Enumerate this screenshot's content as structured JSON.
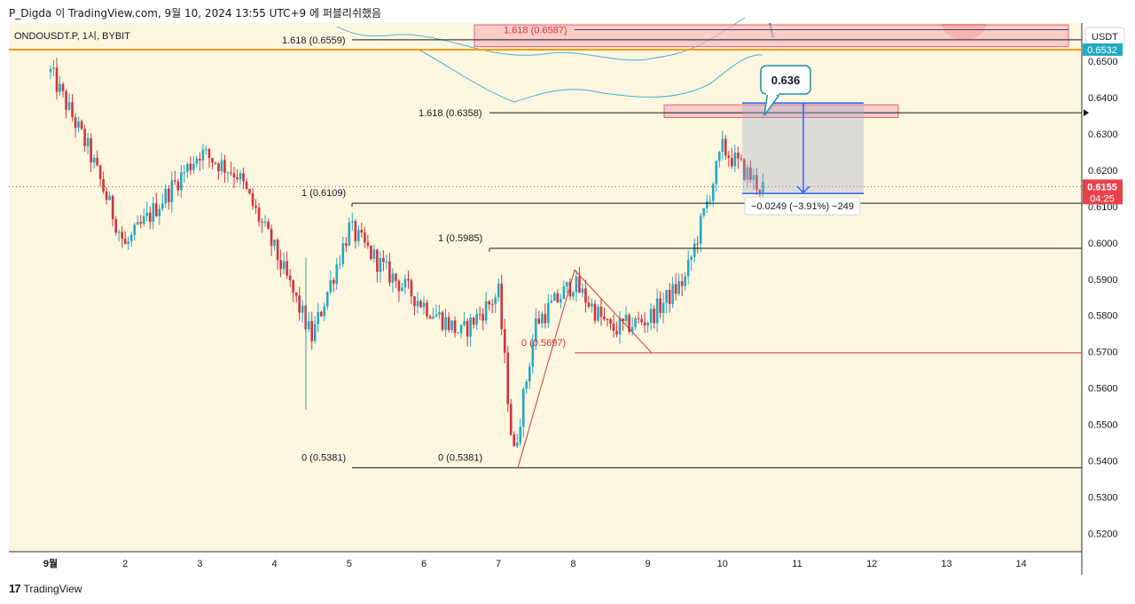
{
  "header_text": "P_Digda 이 TradingView.com, 9월 10, 2024 13:55 UTC+9 에 퍼블리쉬했음",
  "symbol_legend": "ONDOUSDT.P, 1시, BYBIT",
  "currency_button": "USDT",
  "footer_brand": "TradingView",
  "colors": {
    "background": "#fdf7df",
    "up": "#26a7c4",
    "down": "#d2323e",
    "zone_fill": "#f6b9bf",
    "zone_stroke": "#e06470",
    "measure_blue": "#2962ff",
    "current_price_bg": "#e8434c",
    "teal_tag": "#20a9c4",
    "orange_line": "#ff9800",
    "envelope": "#43b3d6"
  },
  "chart_data": {
    "type": "candlestick",
    "ylim": [
      0.515,
      0.6605
    ],
    "y_ticks": [
      "0.6500",
      "0.6400",
      "0.6300",
      "0.6200",
      "0.6100",
      "0.6000",
      "0.5900",
      "0.5800",
      "0.5700",
      "0.5600",
      "0.5500",
      "0.5400",
      "0.5300",
      "0.5200"
    ],
    "x_ticks": [
      "9월",
      "2",
      "3",
      "4",
      "5",
      "6",
      "7",
      "8",
      "9",
      "10",
      "11",
      "12",
      "13",
      "14"
    ],
    "current_price": {
      "value": "0.6155",
      "countdown": "04:25"
    },
    "teal_tag": {
      "value": "0.6532"
    },
    "fib_labels": [
      {
        "text": "1.618 (0.6559)",
        "value": 0.6559
      },
      {
        "text": "1.618 (0.6587)",
        "value": 0.6587
      },
      {
        "text": "1.618 (0.6358)",
        "value": 0.6358
      },
      {
        "text": "1 (0.6109)",
        "value": 0.6109
      },
      {
        "text": "1 (0.5985)",
        "value": 0.5985
      },
      {
        "text": "0 (0.5697)",
        "value": 0.5697
      },
      {
        "text": "0 (0.5381)",
        "value": 0.5381
      },
      {
        "text": "0 (0.5381)",
        "value": 0.5381
      }
    ],
    "callout": {
      "text": "0.636"
    },
    "measure": {
      "text": "−0.0249 (−3.91%) −249",
      "from": 0.6385,
      "to": 0.6136
    },
    "zones": [
      {
        "from": 0.654,
        "to": 0.66
      },
      {
        "from": 0.6345,
        "to": 0.638
      }
    ],
    "series": [
      {
        "name": "",
        "days": [
          1,
          1.5,
          2,
          2.5,
          3,
          3.5,
          4,
          4.5,
          5,
          5.5,
          6,
          6.5,
          7,
          7.2,
          7.5,
          8,
          8.5,
          9,
          9.5,
          10,
          10.5
        ],
        "values": [
          0.647,
          0.626,
          0.599,
          0.612,
          0.625,
          0.619,
          0.598,
          0.574,
          0.604,
          0.592,
          0.583,
          0.575,
          0.586,
          0.541,
          0.578,
          0.589,
          0.576,
          0.579,
          0.59,
          0.626,
          0.6155
        ]
      }
    ]
  }
}
